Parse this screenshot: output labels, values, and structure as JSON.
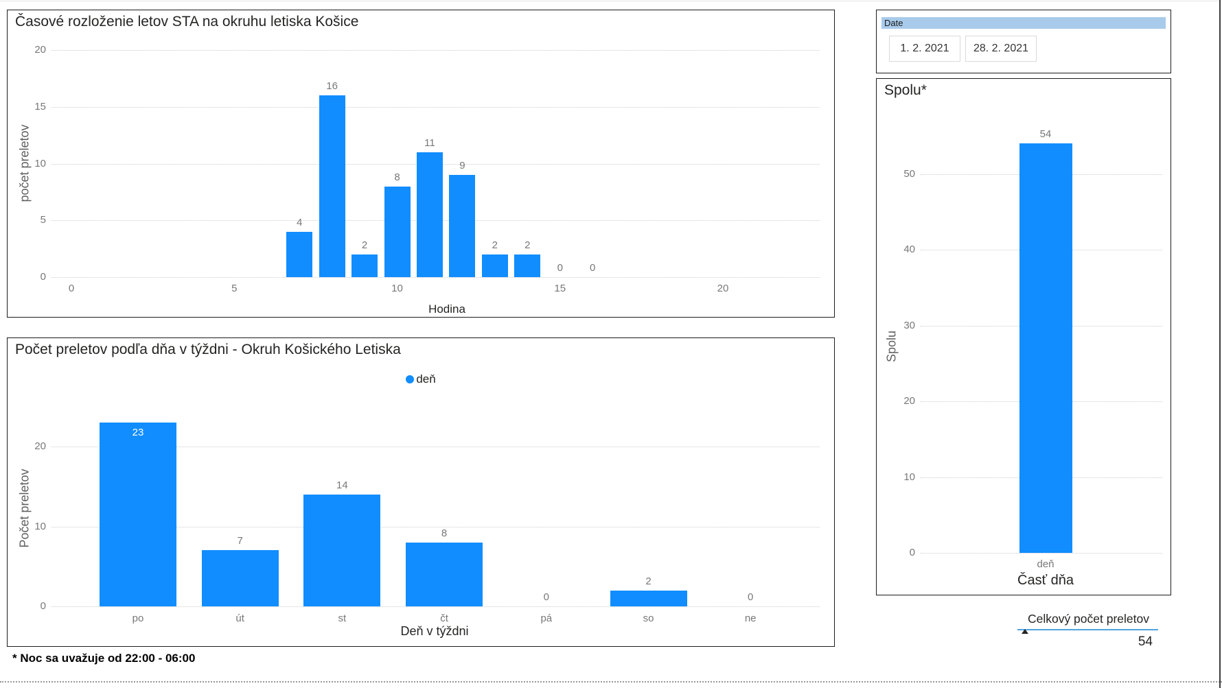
{
  "colors": {
    "bar": "#118DFF",
    "slicer_header_bg": "#A9CBEB",
    "table_underline": "#4FA3E3"
  },
  "chart_data": [
    {
      "id": "hourly",
      "type": "bar",
      "title": "Časové rozloženie letov STA na okruhu letiska Košice",
      "xlabel": "Hodina",
      "ylabel": "počet preletov",
      "x": [
        7,
        8,
        9,
        10,
        11,
        12,
        13,
        14,
        15,
        16
      ],
      "values": [
        4,
        16,
        2,
        8,
        11,
        9,
        2,
        2,
        0,
        0
      ],
      "x_ticks": [
        0,
        5,
        10,
        15,
        20
      ],
      "y_ticks": [
        0,
        5,
        10,
        15,
        20
      ],
      "ylim": [
        0,
        20
      ],
      "xlim": [
        0,
        23
      ],
      "grid": "dotted horizontal",
      "legend_position": "none"
    },
    {
      "id": "weekday",
      "type": "bar",
      "title": "Počet preletov podľa dňa v týždni - Okruh Košického Letiska",
      "xlabel": "Deň v týždni",
      "ylabel": "Počet preletov",
      "legend": [
        "deň"
      ],
      "legend_position": "top-center",
      "categories": [
        "po",
        "út",
        "st",
        "čt",
        "pá",
        "so",
        "ne"
      ],
      "values": [
        23,
        7,
        14,
        8,
        0,
        2,
        0
      ],
      "y_ticks": [
        0,
        10,
        20
      ],
      "ylim": [
        0,
        24
      ],
      "grid": "dotted horizontal"
    },
    {
      "id": "total",
      "type": "bar",
      "title": "Spolu*",
      "xlabel": "Časť dňa",
      "ylabel": "Spolu",
      "categories": [
        "deň"
      ],
      "values": [
        54
      ],
      "y_ticks": [
        0,
        10,
        20,
        30,
        40,
        50
      ],
      "ylim": [
        0,
        54
      ],
      "grid": "dotted horizontal",
      "legend_position": "none"
    }
  ],
  "date_slicer": {
    "header": "Date",
    "start_date": "1. 2. 2021",
    "end_date": "28. 2. 2021"
  },
  "total_card": {
    "header": "Celkový počet preletov",
    "value": "54",
    "sort_icon": "ascending-triangle"
  },
  "footnote": "* Noc sa uvažuje od 22:00 - 06:00"
}
